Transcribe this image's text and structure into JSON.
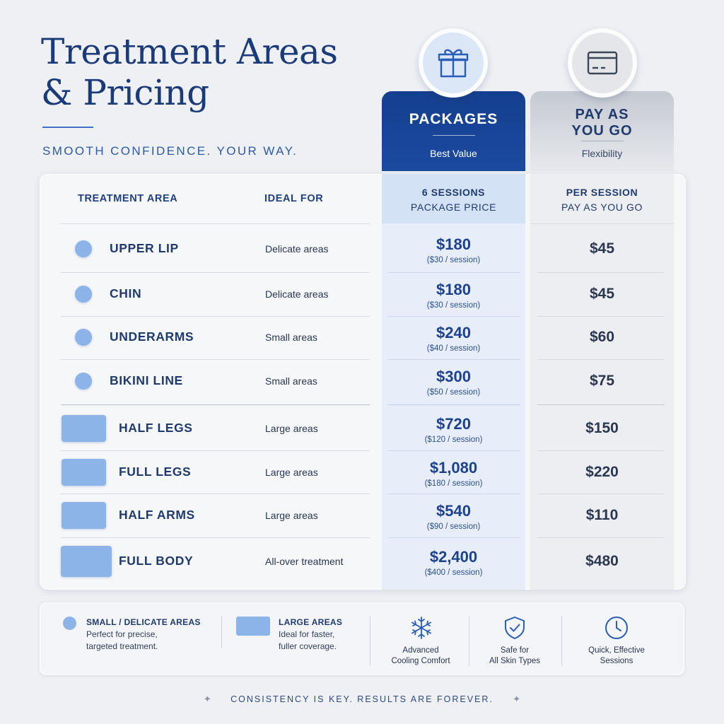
{
  "header": {
    "title_line1": "Treatment Areas",
    "title_line2": "& Pricing",
    "tagline": "SMOOTH CONFIDENCE. YOUR WAY."
  },
  "columns": {
    "packages": {
      "icon": "gift-icon",
      "name": "PACKAGES",
      "subtitle": "Best Value",
      "header_line1": "6 SESSIONS",
      "header_line2": "PACKAGE PRICE"
    },
    "payg": {
      "icon": "credit-card-icon",
      "name_line1": "PAY AS",
      "name_line2": "YOU GO",
      "subtitle": "Flexibility",
      "header_line1": "PER SESSION",
      "header_line2": "PAY AS YOU GO"
    }
  },
  "table": {
    "col_area": "TREATMENT AREA",
    "col_ideal": "IDEAL FOR",
    "rows": [
      {
        "area": "UPPER LIP",
        "ideal": "Delicate areas",
        "package": "$180",
        "per_session": "($30 / session)",
        "payg": "$45",
        "size": "small"
      },
      {
        "area": "CHIN",
        "ideal": "Delicate areas",
        "package": "$180",
        "per_session": "($30 / session)",
        "payg": "$45",
        "size": "small"
      },
      {
        "area": "UNDERARMS",
        "ideal": "Small areas",
        "package": "$240",
        "per_session": "($40 / session)",
        "payg": "$60",
        "size": "small"
      },
      {
        "area": "BIKINI LINE",
        "ideal": "Small areas",
        "package": "$300",
        "per_session": "($50 / session)",
        "payg": "$75",
        "size": "small"
      },
      {
        "area": "HALF LEGS",
        "ideal": "Large areas",
        "package": "$720",
        "per_session": "($120 / session)",
        "payg": "$150",
        "size": "large"
      },
      {
        "area": "FULL LEGS",
        "ideal": "Large areas",
        "package": "$1,080",
        "per_session": "($180 / session)",
        "payg": "$220",
        "size": "large"
      },
      {
        "area": "HALF ARMS",
        "ideal": "Large areas",
        "package": "$540",
        "per_session": "($90 / session)",
        "payg": "$110",
        "size": "large"
      },
      {
        "area": "FULL BODY",
        "ideal": "All-over treatment",
        "package": "$2,400",
        "per_session": "($400 / session)",
        "payg": "$480",
        "size": "large"
      }
    ]
  },
  "legend": {
    "small_title": "SMALL / DELICATE AREAS",
    "small_desc1": "Perfect for precise,",
    "small_desc2": "targeted treatment.",
    "large_title": "LARGE AREAS",
    "large_desc1": "Ideal for faster,",
    "large_desc2": "fuller coverage.",
    "features": [
      {
        "icon": "snowflake-icon",
        "line1": "Advanced",
        "line2": "Cooling Comfort"
      },
      {
        "icon": "shield-check-icon",
        "line1": "Safe for",
        "line2": "All Skin Types"
      },
      {
        "icon": "clock-icon",
        "line1": "Quick, Effective",
        "line2": "Sessions"
      }
    ]
  },
  "footer": {
    "text": "CONSISTENCY IS KEY. RESULTS ARE FOREVER."
  },
  "colors": {
    "navy": "#1a3a78",
    "accent_blue": "#8db4e8",
    "package_header": "#153f8f",
    "payg_header": "#c5c9d1"
  }
}
